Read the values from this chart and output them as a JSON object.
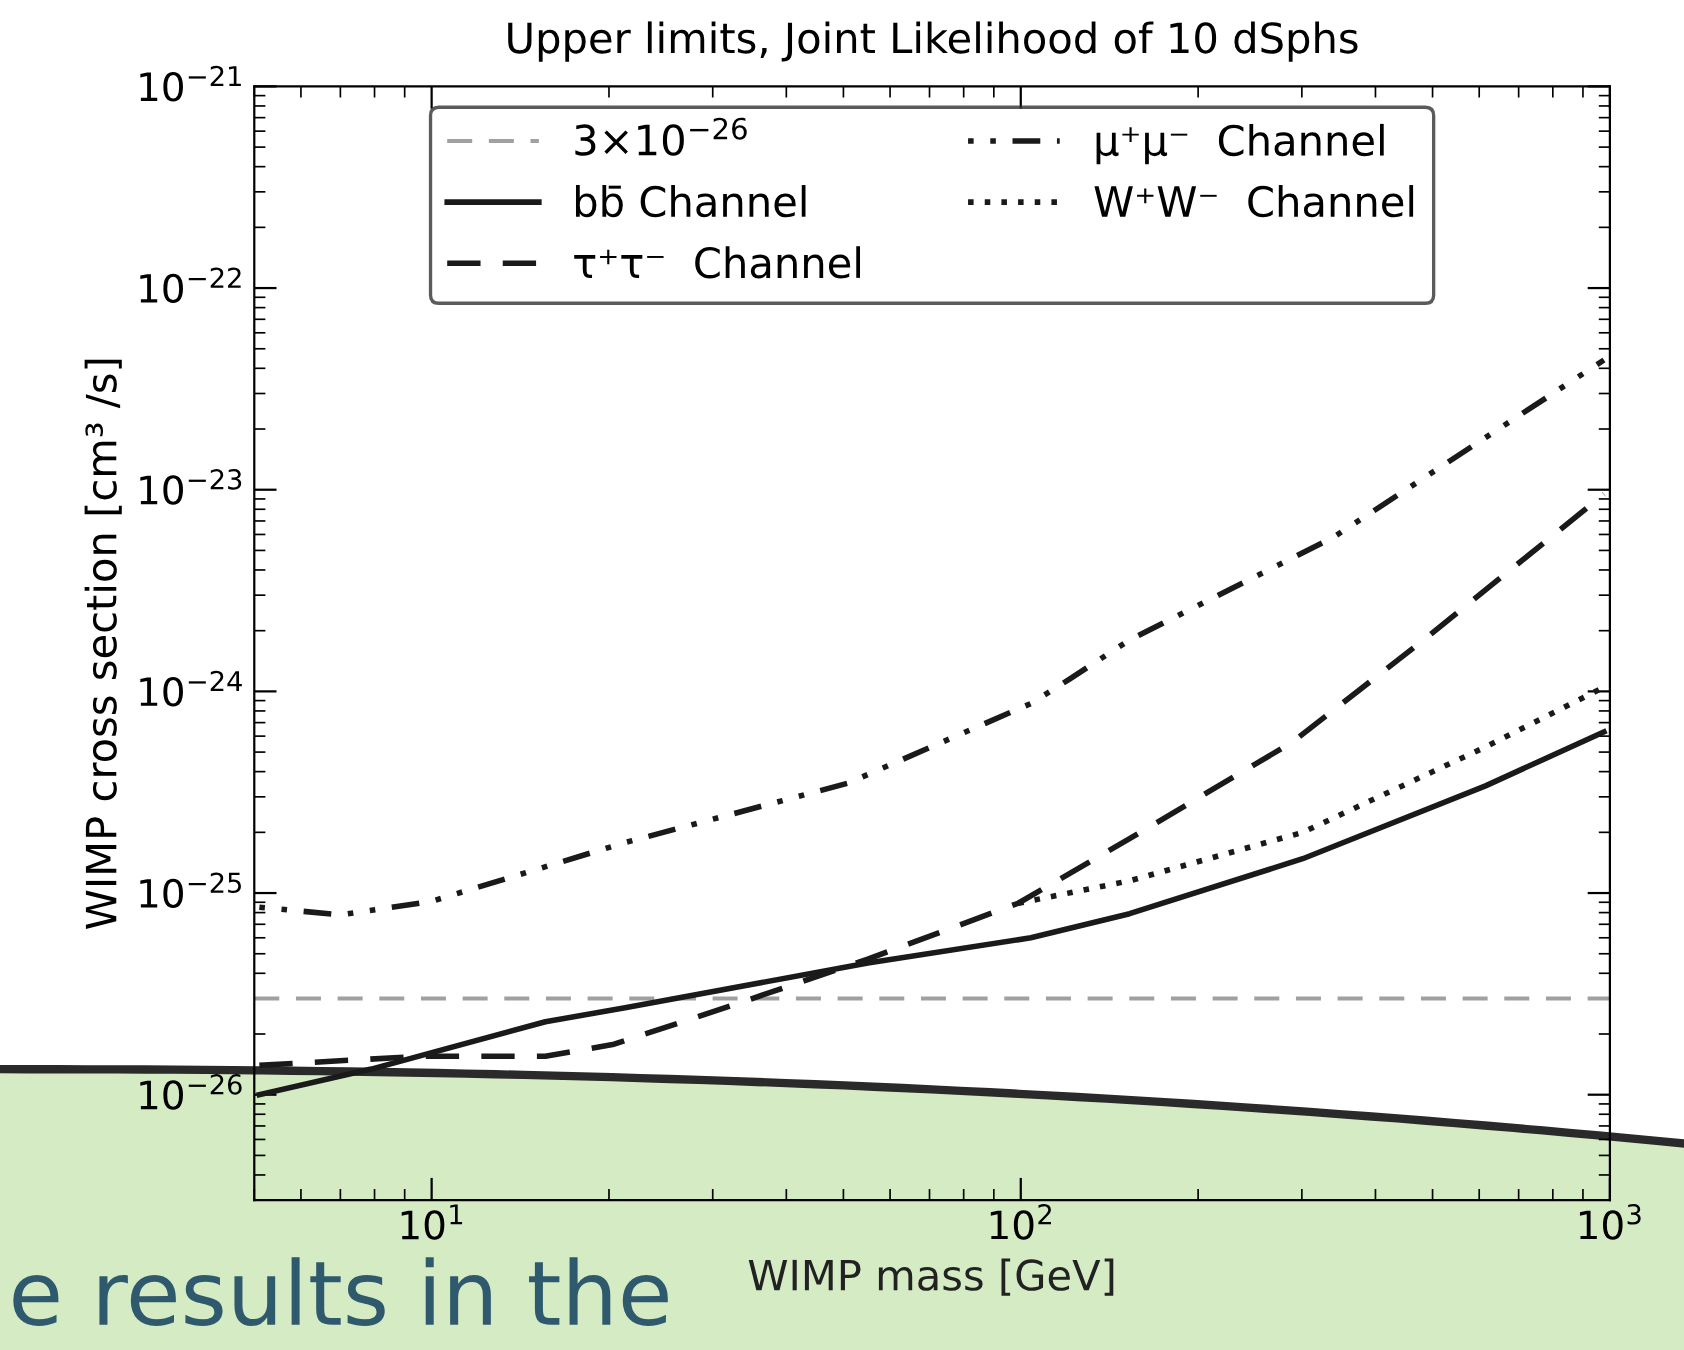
{
  "chart_data": {
    "type": "line",
    "title": "Upper limits, Joint Likelihood of 10 dSphs",
    "xlabel": "WIMP mass [GeV]",
    "ylabel": "WIMP cross section [cm³ /s]",
    "log": "xy",
    "xlim": [
      5,
      1000
    ],
    "ylim": [
      3e-27,
      1e-21
    ],
    "xticks": [
      {
        "value": 10,
        "label": "10$^{1}$"
      },
      {
        "value": 100,
        "label": "10$^{2}$"
      },
      {
        "value": 1000,
        "label": "10$^{3}$"
      }
    ],
    "yticks": [
      {
        "value": 1e-26,
        "label": "10$^{−26}$"
      },
      {
        "value": 1e-25,
        "label": "10$^{−25}$"
      },
      {
        "value": 1e-24,
        "label": "10$^{−24}$"
      },
      {
        "value": 1e-23,
        "label": "10$^{−23}$"
      },
      {
        "value": 1e-22,
        "label": "10$^{−22}$"
      },
      {
        "value": 1e-21,
        "label": "10$^{−21}$"
      }
    ],
    "grid": false,
    "legend": "top",
    "marker": "none",
    "ref_lines": [
      {
        "axis": "y",
        "value": 3e-26,
        "label": "3×10$^{−26}$",
        "color": "#a0a0a0",
        "line_style": "dashed"
      }
    ],
    "series": [
      {
        "name": "bb̄ Channel",
        "color": "#1a1a1a",
        "line_style": "solid",
        "x": [
          5.1,
          7.9,
          15.6,
          21.3,
          55,
          104,
          153,
          301,
          615,
          977
        ],
        "values": [
          1e-26,
          1.34e-26,
          2.3e-26,
          2.7e-26,
          4.5e-26,
          6e-26,
          7.9e-26,
          1.48e-25,
          3.4e-25,
          6.3e-25
        ]
      },
      {
        "name": "τ⁺τ⁻  Channel",
        "color": "#1a1a1a",
        "line_style": "dashed",
        "x": [
          5.1,
          9.6,
          15.6,
          20.4,
          31.5,
          55,
          99,
          153,
          289,
          483,
          977
        ],
        "values": [
          1.4e-26,
          1.55e-26,
          1.55e-26,
          1.78e-26,
          2.7e-26,
          4.7e-26,
          8.9e-26,
          1.86e-25,
          5.6e-25,
          1.8e-24,
          9.5e-24
        ]
      },
      {
        "name": "μ⁺μ⁻  Channel",
        "color": "#1a1a1a",
        "line_style": "dashdot",
        "x": [
          5.1,
          7.0,
          10,
          21.3,
          50.8,
          104,
          121,
          153,
          339,
          977
        ],
        "values": [
          8.5e-26,
          7.8e-26,
          9.1e-26,
          1.78e-25,
          3.5e-25,
          8.7e-25,
          1.15e-24,
          1.8e-24,
          5.8e-24,
          4.4e-23
        ]
      },
      {
        "name": "W⁺W⁻  Channel",
        "color": "#1a1a1a",
        "line_style": "dotted",
        "x": [
          99,
          153,
          301,
          615,
          977
        ],
        "values": [
          8.9e-26,
          1.15e-25,
          2e-25,
          5.3e-25,
          1.05e-24
        ]
      }
    ],
    "annotations": [
      "e results in the"
    ]
  }
}
